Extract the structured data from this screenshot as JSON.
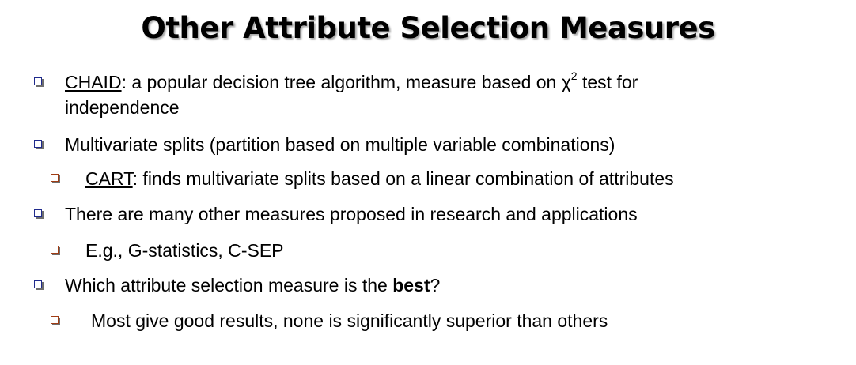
{
  "title": "Other Attribute Selection Measures",
  "bullets": [
    {
      "term": "CHAID",
      "line1": ": a popular decision tree algorithm, measure based on χ",
      "sup": "2",
      "line1_end": " test for",
      "line2": "independence"
    },
    {
      "text": "Multivariate splits (partition based on multiple variable combinations)",
      "sub": {
        "term": "CART",
        "rest": ": finds multivariate splits based on a linear combination of attributes"
      }
    },
    {
      "text": "There are many other measures proposed in research and applications",
      "sub": {
        "text": "E.g., G-statistics, C-SEP"
      }
    },
    {
      "text_before": "Which attribute selection measure is the ",
      "strong": "best",
      "text_after": "?",
      "sub": {
        "text": "Most give good results, none is significantly superior than others"
      }
    }
  ]
}
